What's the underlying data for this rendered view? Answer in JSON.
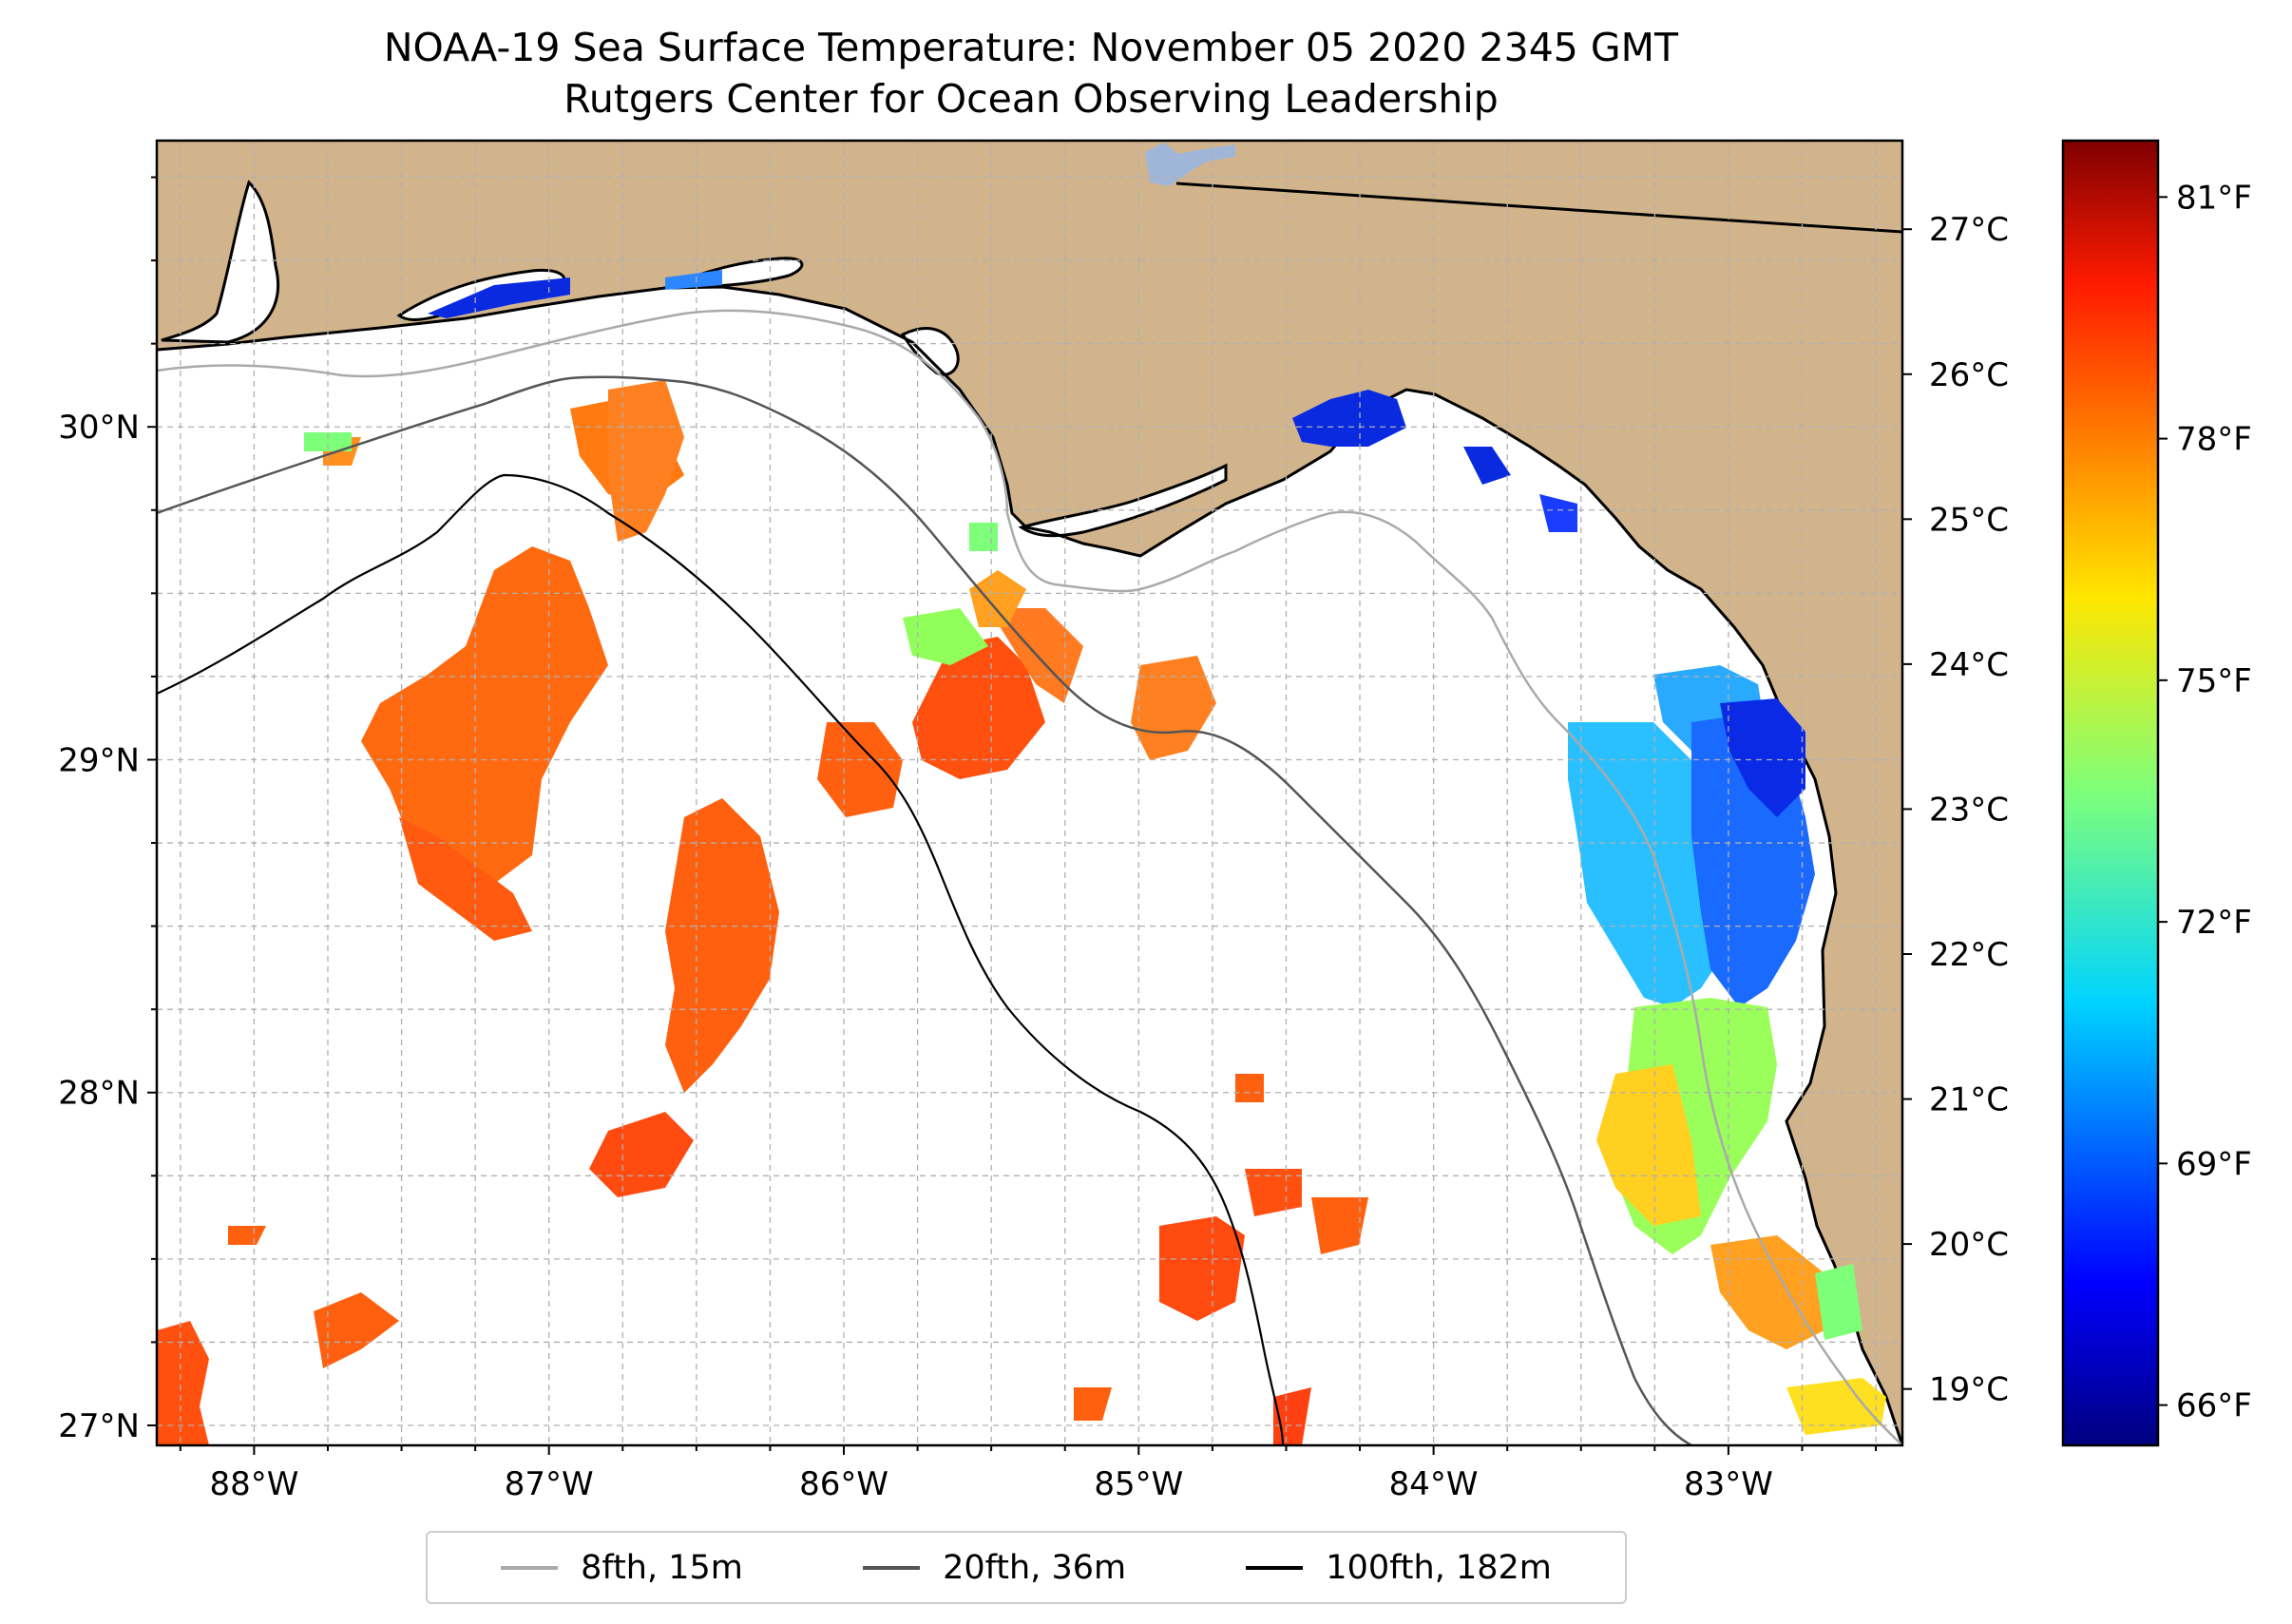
{
  "title_line1": "NOAA-19 Sea Surface Temperature: November 05 2020 2345 GMT",
  "title_line2": "Rutgers Center for Ocean Observing Leadership",
  "colors": {
    "land": "#d2b48c",
    "lake": "#9fb6d9",
    "isobath_8": "#aaaaaa",
    "isobath_20": "#555555",
    "isobath_100": "#000000",
    "grid": "#b0b0b0"
  },
  "map": {
    "lon_range": [
      -88.33,
      -82.41
    ],
    "lat_range": [
      26.94,
      30.86
    ],
    "lon_ticks": [
      {
        "value": -88,
        "label": "88°W"
      },
      {
        "value": -87,
        "label": "87°W"
      },
      {
        "value": -86,
        "label": "86°W"
      },
      {
        "value": -85,
        "label": "85°W"
      },
      {
        "value": -84,
        "label": "84°W"
      },
      {
        "value": -83,
        "label": "83°W"
      }
    ],
    "lat_ticks": [
      {
        "value": 27,
        "label": "27°N"
      },
      {
        "value": 28,
        "label": "28°N"
      },
      {
        "value": 29,
        "label": "29°N"
      },
      {
        "value": 30,
        "label": "30°N"
      }
    ]
  },
  "colorbar": {
    "colormap": "jet",
    "celsius_ticks": [
      {
        "value": 19,
        "label": "19°C"
      },
      {
        "value": 20,
        "label": "20°C"
      },
      {
        "value": 21,
        "label": "21°C"
      },
      {
        "value": 22,
        "label": "22°C"
      },
      {
        "value": 23,
        "label": "23°C"
      },
      {
        "value": 24,
        "label": "24°C"
      },
      {
        "value": 25,
        "label": "25°C"
      },
      {
        "value": 26,
        "label": "26°C"
      },
      {
        "value": 27,
        "label": "27°C"
      }
    ],
    "fahrenheit_ticks": [
      {
        "value": 66,
        "label": "66°F"
      },
      {
        "value": 69,
        "label": "69°F"
      },
      {
        "value": 72,
        "label": "72°F"
      },
      {
        "value": 75,
        "label": "75°F"
      },
      {
        "value": 78,
        "label": "78°F"
      },
      {
        "value": 81,
        "label": "81°F"
      }
    ],
    "range_f": [
      65.5,
      81.7
    ]
  },
  "legend": [
    {
      "label": "8fth, 15m",
      "color": "#aaaaaa"
    },
    {
      "label": "20fth, 36m",
      "color": "#555555"
    },
    {
      "label": "100fth, 182m",
      "color": "#000000"
    }
  ]
}
